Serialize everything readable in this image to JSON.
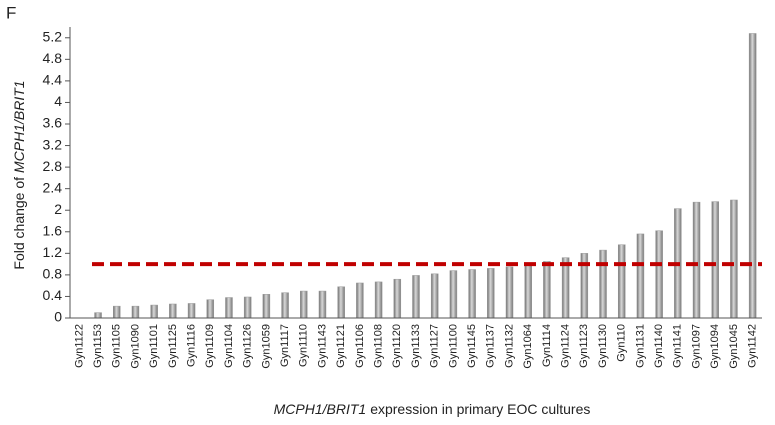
{
  "chart_data": {
    "type": "bar",
    "panel_label": "F",
    "y_label": {
      "text": "Fold change of",
      "italic": "MCPH1/BRIT1"
    },
    "x_label": {
      "italic": "MCPH1/BRIT1",
      "text": "expression in primary EOC cultures"
    },
    "categories": [
      "Gyn1122",
      "Gyn1153",
      "Gyn1105",
      "Gyn1090",
      "Gyn1101",
      "Gyn1125",
      "Gyn1116",
      "Gyn1109",
      "Gyn1104",
      "Gyn1126",
      "Gyn1059",
      "Gyn1117",
      "Gyn1110",
      "Gyn1143",
      "Gyn1121",
      "Gyn1106",
      "Gyn1108",
      "Gyn1120",
      "Gyn1133",
      "Gyn1127",
      "Gyn1100",
      "Gyn1145",
      "Gyn1137",
      "Gyn1132",
      "Gyn1064",
      "Gyn1114",
      "Gyn1124",
      "Gyn1123",
      "Gyn1130",
      "Gyn110",
      "Gyn1131",
      "Gyn1140",
      "Gyn1141",
      "Gyn1097",
      "Gyn1094",
      "Gyn1045",
      "Gyn1142"
    ],
    "values": [
      0,
      0.1,
      0.22,
      0.22,
      0.24,
      0.26,
      0.27,
      0.34,
      0.38,
      0.39,
      0.44,
      0.47,
      0.5,
      0.5,
      0.58,
      0.65,
      0.67,
      0.72,
      0.79,
      0.82,
      0.88,
      0.9,
      0.92,
      0.95,
      0.97,
      1.05,
      1.12,
      1.2,
      1.26,
      1.36,
      1.56,
      1.62,
      2.03,
      2.15,
      2.16,
      2.19,
      5.28
    ],
    "color": "#9a9a9a",
    "reference_line": {
      "value": 1,
      "color": "#c00000"
    },
    "ylim": [
      0,
      5.4
    ],
    "yticks": [
      0,
      0.4,
      0.8,
      1.2,
      1.6,
      2,
      2.4,
      2.8,
      3.2,
      3.6,
      4,
      4.4,
      4.8,
      5.2
    ],
    "grid": false
  }
}
